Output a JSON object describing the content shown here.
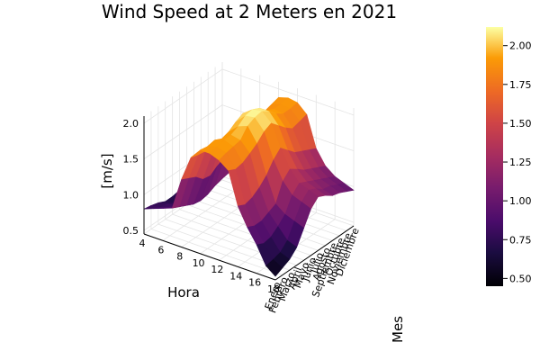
{
  "chart_data": {
    "type": "surface",
    "title": "Wind Speed at 2 Meters en 2021",
    "xlabel": "Hora",
    "ylabel": "Mes",
    "zlabel": "[m/s]",
    "x_ticks": [
      "4",
      "6",
      "8",
      "10",
      "12",
      "14",
      "16",
      "18"
    ],
    "y_ticks": [
      "Enero",
      "Febrero",
      "Marzo",
      "Abril",
      "Mayo",
      "Junio",
      "Julio",
      "Agosto",
      "Septiembre",
      "Octubre",
      "Noviembre",
      "Diciembre"
    ],
    "z_ticks": [
      "0.5",
      "1.0",
      "1.5",
      "2.0"
    ],
    "zlim": [
      0.45,
      2.1
    ],
    "colorbar": {
      "ticks": [
        "0.50",
        "0.75",
        "1.00",
        "1.25",
        "1.50",
        "1.75",
        "2.00"
      ],
      "range": [
        0.45,
        2.12
      ],
      "colormap": "inferno"
    },
    "x": [
      4,
      5,
      6,
      7,
      8,
      9,
      10,
      11,
      12,
      13,
      14,
      15,
      16,
      17,
      18
    ],
    "series": [
      {
        "month": "Enero",
        "values": [
          0.8,
          0.85,
          0.9,
          0.95,
          1.4,
          1.75,
          1.9,
          1.9,
          1.85,
          1.75,
          1.3,
          1.05,
          0.85,
          0.6,
          0.5
        ]
      },
      {
        "month": "Febrero",
        "values": [
          0.78,
          0.8,
          0.85,
          0.9,
          1.35,
          1.72,
          1.88,
          1.92,
          1.88,
          1.7,
          1.25,
          1.0,
          0.8,
          0.62,
          0.55
        ]
      },
      {
        "month": "Marzo",
        "values": [
          0.75,
          0.78,
          0.8,
          0.85,
          1.3,
          1.7,
          1.9,
          1.95,
          1.9,
          1.72,
          1.28,
          1.0,
          0.82,
          0.65,
          0.6
        ]
      },
      {
        "month": "Abril",
        "values": [
          0.7,
          0.72,
          0.75,
          0.8,
          1.2,
          1.62,
          1.85,
          1.95,
          1.92,
          1.78,
          1.35,
          1.05,
          0.9,
          0.75,
          0.7
        ]
      },
      {
        "month": "Mayo",
        "values": [
          0.7,
          0.72,
          0.7,
          0.78,
          1.18,
          1.6,
          1.88,
          2.0,
          2.05,
          1.85,
          1.45,
          1.1,
          1.0,
          0.95,
          0.9
        ]
      },
      {
        "month": "Junio",
        "values": [
          0.72,
          0.75,
          0.72,
          0.8,
          1.25,
          1.7,
          1.95,
          2.08,
          2.1,
          1.95,
          1.6,
          1.35,
          1.2,
          1.15,
          1.1
        ]
      },
      {
        "month": "Julio",
        "values": [
          0.75,
          0.78,
          0.8,
          0.85,
          1.3,
          1.75,
          2.0,
          2.1,
          2.12,
          2.0,
          1.7,
          1.45,
          1.3,
          1.25,
          1.2
        ]
      },
      {
        "month": "Agosto",
        "values": [
          0.78,
          0.8,
          0.82,
          0.88,
          1.32,
          1.72,
          1.95,
          2.05,
          2.05,
          1.9,
          1.6,
          1.38,
          1.25,
          1.2,
          1.15
        ]
      },
      {
        "month": "Septiembre",
        "values": [
          0.8,
          0.82,
          0.85,
          0.9,
          1.3,
          1.68,
          1.88,
          1.95,
          1.95,
          1.8,
          1.5,
          1.3,
          1.2,
          1.12,
          1.08
        ]
      },
      {
        "month": "Octubre",
        "values": [
          0.8,
          0.82,
          0.85,
          0.9,
          1.25,
          1.62,
          1.82,
          1.9,
          1.88,
          1.72,
          1.45,
          1.25,
          1.15,
          1.1,
          1.05
        ]
      },
      {
        "month": "Noviembre",
        "values": [
          0.82,
          0.85,
          0.88,
          0.92,
          1.28,
          1.65,
          1.85,
          1.9,
          1.88,
          1.75,
          1.4,
          1.2,
          1.1,
          1.05,
          1.0
        ]
      },
      {
        "month": "Diciembre",
        "values": [
          0.85,
          0.88,
          0.9,
          0.95,
          1.35,
          1.7,
          1.88,
          1.92,
          1.9,
          1.78,
          1.35,
          1.15,
          1.05,
          1.0,
          0.95
        ]
      }
    ]
  }
}
